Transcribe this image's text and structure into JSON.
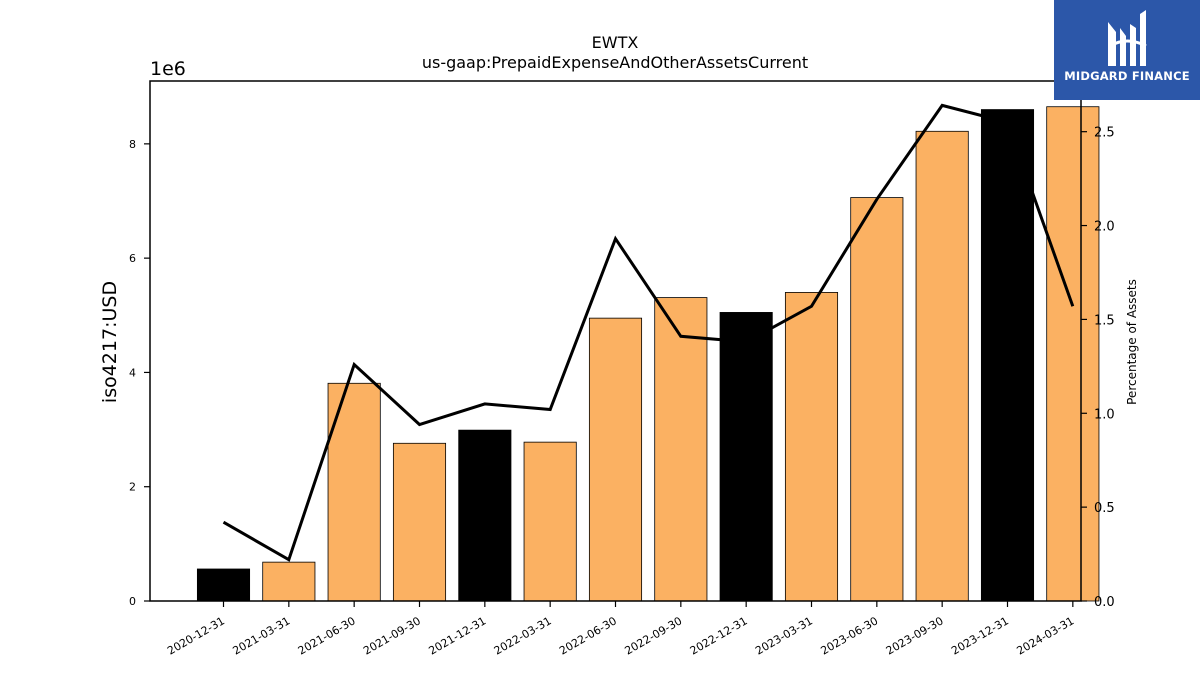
{
  "logo": {
    "name": "MIDGARD FINANCE"
  },
  "chart_data": {
    "type": "bar",
    "title": "EWTX",
    "subtitle": "us-gaap:PrepaidExpenseAndOtherAssetsCurrent",
    "ylabel": "iso4217:USD",
    "y2label": "Percentage of Assets",
    "y_offset_label": "1e6",
    "categories": [
      "2020-12-31",
      "2021-03-31",
      "2021-06-30",
      "2021-09-30",
      "2021-12-31",
      "2022-03-31",
      "2022-06-30",
      "2022-09-30",
      "2022-12-31",
      "2023-03-31",
      "2023-06-30",
      "2023-09-30",
      "2023-12-31",
      "2024-03-31"
    ],
    "series": [
      {
        "type": "bar",
        "values": [
          560000,
          680000,
          3810000,
          2760000,
          2990000,
          2780000,
          4950000,
          5310000,
          5050000,
          5400000,
          7060000,
          8220000,
          8600000,
          8650000
        ],
        "colors": [
          "#000000",
          "#fbb162",
          "#fbb162",
          "#fbb162",
          "#000000",
          "#fbb162",
          "#fbb162",
          "#fbb162",
          "#000000",
          "#fbb162",
          "#fbb162",
          "#fbb162",
          "#000000",
          "#fbb162"
        ]
      },
      {
        "type": "line",
        "axis": "right",
        "color": "#000000",
        "values": [
          0.42,
          0.22,
          1.26,
          0.94,
          1.05,
          1.02,
          1.93,
          1.41,
          1.38,
          1.57,
          2.14,
          2.64,
          2.55,
          1.57
        ]
      }
    ],
    "ylim": [
      0,
      9100000
    ],
    "y2lim": [
      0,
      2.77
    ],
    "yticks": [
      0,
      2,
      4,
      6,
      8
    ],
    "y2ticks": [
      "0.0",
      "0.5",
      "1.0",
      "1.5",
      "2.0",
      "2.5"
    ],
    "grid": false
  }
}
